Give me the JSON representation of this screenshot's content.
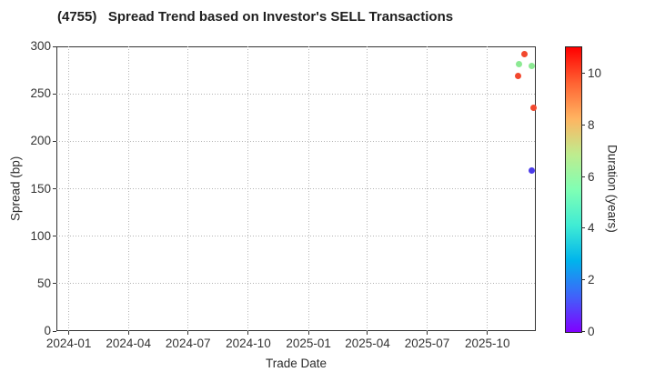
{
  "header": {
    "title": "(4755)   Spread Trend based on Investor's SELL Transactions"
  },
  "chart_data": {
    "type": "scatter",
    "title": "(4755)   Spread Trend based on Investor's SELL Transactions",
    "xlabel": "Trade Date",
    "ylabel": "Spread (bp)",
    "x_domain": [
      "2023-12-13",
      "2025-12-14"
    ],
    "ylim": [
      0,
      300
    ],
    "grid": true,
    "y_ticks": [
      {
        "value": 0,
        "label": "0"
      },
      {
        "value": 50,
        "label": "50"
      },
      {
        "value": 100,
        "label": "100"
      },
      {
        "value": 150,
        "label": "150"
      },
      {
        "value": 200,
        "label": "200"
      },
      {
        "value": 250,
        "label": "250"
      },
      {
        "value": 300,
        "label": "300"
      }
    ],
    "x_ticks": [
      {
        "date": "2024-01-01",
        "label": "2024-01"
      },
      {
        "date": "2024-04-01",
        "label": "2024-04"
      },
      {
        "date": "2024-07-01",
        "label": "2024-07"
      },
      {
        "date": "2024-10-01",
        "label": "2024-10"
      },
      {
        "date": "2025-01-01",
        "label": "2025-01"
      },
      {
        "date": "2025-04-01",
        "label": "2025-04"
      },
      {
        "date": "2025-07-01",
        "label": "2025-07"
      },
      {
        "date": "2025-10-01",
        "label": "2025-10"
      }
    ],
    "points": [
      {
        "date": "2025-11-27",
        "spread_bp": 292,
        "duration_years": 10.3,
        "color": "#f2482e"
      },
      {
        "date": "2025-11-18",
        "spread_bp": 281,
        "duration_years": 6.3,
        "color": "#8ce993"
      },
      {
        "date": "2025-12-08",
        "spread_bp": 279,
        "duration_years": 6.3,
        "color": "#8ce993"
      },
      {
        "date": "2025-11-17",
        "spread_bp": 269,
        "duration_years": 10.3,
        "color": "#f2482e"
      },
      {
        "date": "2025-12-10",
        "spread_bp": 235,
        "duration_years": 10.4,
        "color": "#f2482e"
      },
      {
        "date": "2025-12-08",
        "spread_bp": 169,
        "duration_years": 1.5,
        "color": "#4b3be9"
      }
    ],
    "colorbar": {
      "label": "Duration (years)",
      "min": 0,
      "max": 11.05,
      "ticks": [
        0,
        2,
        4,
        6,
        8,
        10
      ],
      "colormap": [
        "#8000FF",
        "#4062FA",
        "#00B4EC",
        "#40ECD4",
        "#80FFB4",
        "#BFEC8E",
        "#FFB461",
        "#FF6232",
        "#FF0000"
      ]
    }
  }
}
